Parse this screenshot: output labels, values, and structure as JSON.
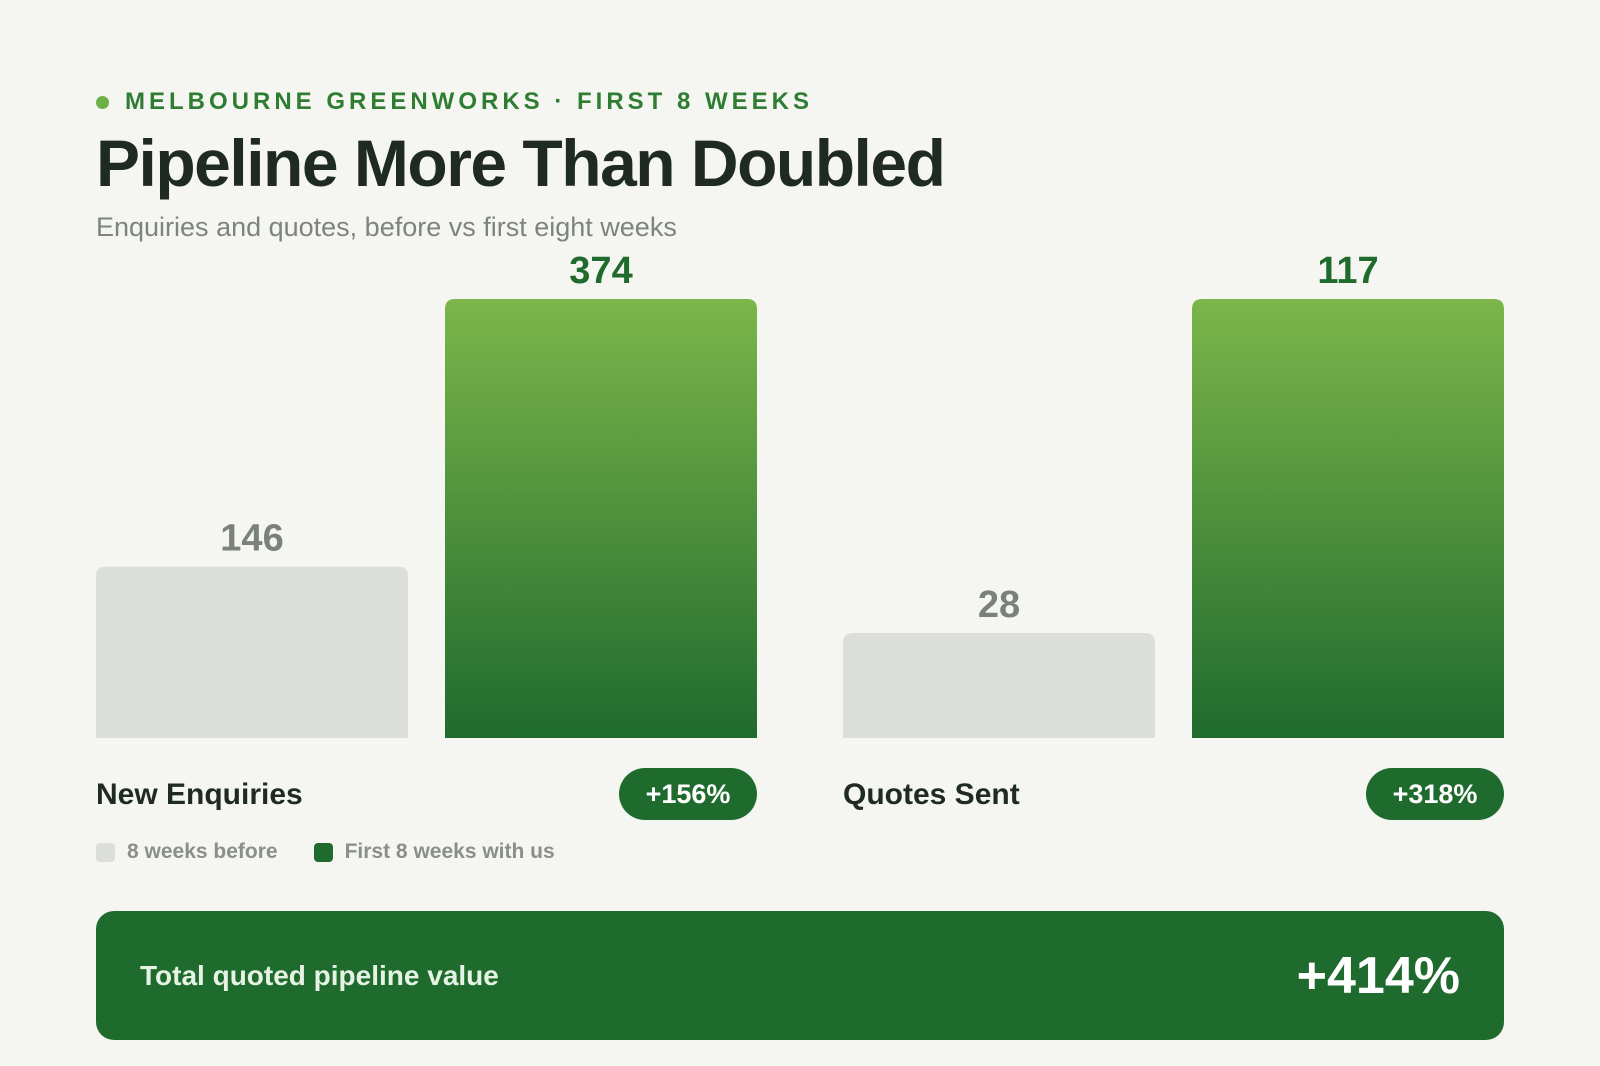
{
  "header": {
    "eyebrow": "MELBOURNE GREENWORKS · FIRST 8 WEEKS",
    "title": "Pipeline More Than Doubled",
    "subtitle": "Enquiries and quotes, before vs first eight weeks"
  },
  "colors": {
    "before": "#dcdedb",
    "after_top": "#7cb64a",
    "after_bottom": "#1f6b2e",
    "before_label": "#7a807b",
    "after_label": "#1f6b2e",
    "badge": "#1f6b2e"
  },
  "chart_data": {
    "type": "bar",
    "categories": [
      "New Enquiries",
      "Quotes Sent"
    ],
    "series": [
      {
        "name": "8 weeks before",
        "values": [
          146,
          28
        ]
      },
      {
        "name": "First 8 weeks with us",
        "values": [
          374,
          117
        ]
      }
    ],
    "change_badges": [
      "+156%",
      "+318%"
    ],
    "grid": false,
    "legend_position": "bottom-left",
    "note": "each category scaled independently; after-bar fills full height"
  },
  "legend": {
    "before_label": "8 weeks before",
    "after_label": "First 8 weeks with us"
  },
  "summary": {
    "label": "Total quoted pipeline value",
    "value": "+414%"
  }
}
